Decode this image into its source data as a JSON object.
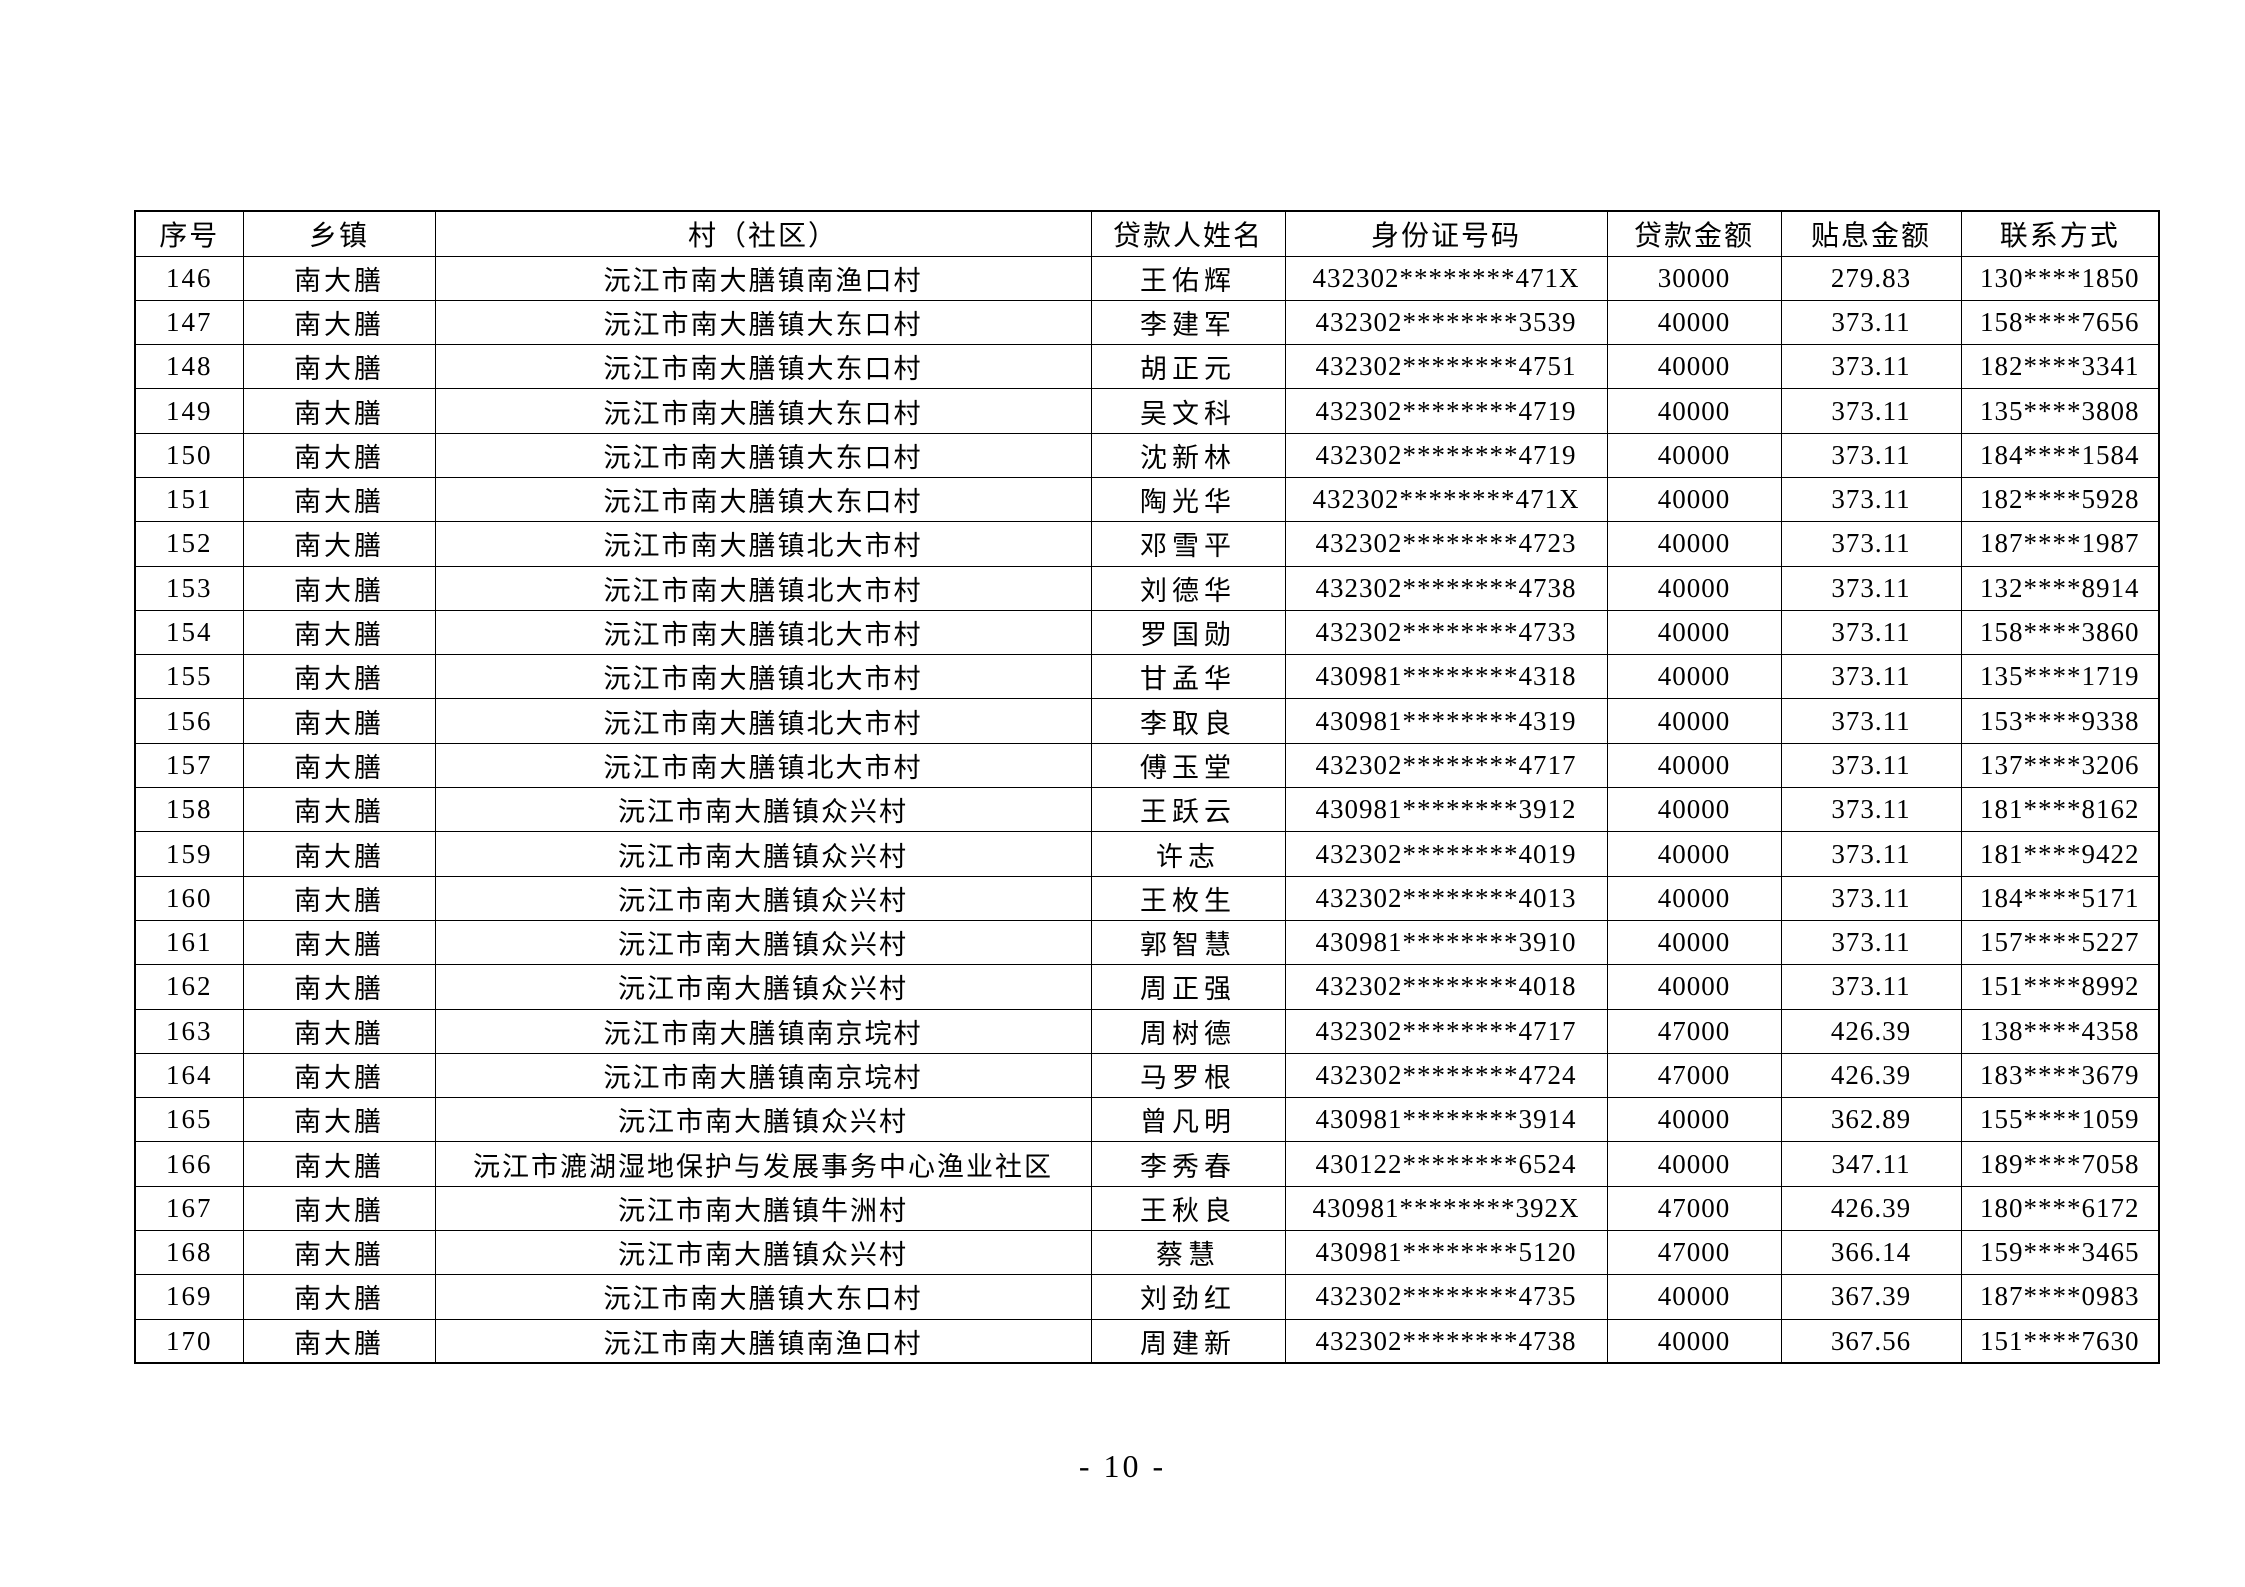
{
  "page": {
    "number_label": "- 10 -"
  },
  "table": {
    "headers": [
      "序号",
      "乡镇",
      "村（社区）",
      "贷款人姓名",
      "身份证号码",
      "贷款金额",
      "贴息金额",
      "联系方式"
    ],
    "rows": [
      [
        "146",
        "南大膳",
        "沅江市南大膳镇南渔口村",
        "王佑辉",
        "432302********471X",
        "30000",
        "279.83",
        "130****1850"
      ],
      [
        "147",
        "南大膳",
        "沅江市南大膳镇大东口村",
        "李建军",
        "432302********3539",
        "40000",
        "373.11",
        "158****7656"
      ],
      [
        "148",
        "南大膳",
        "沅江市南大膳镇大东口村",
        "胡正元",
        "432302********4751",
        "40000",
        "373.11",
        "182****3341"
      ],
      [
        "149",
        "南大膳",
        "沅江市南大膳镇大东口村",
        "吴文科",
        "432302********4719",
        "40000",
        "373.11",
        "135****3808"
      ],
      [
        "150",
        "南大膳",
        "沅江市南大膳镇大东口村",
        "沈新林",
        "432302********4719",
        "40000",
        "373.11",
        "184****1584"
      ],
      [
        "151",
        "南大膳",
        "沅江市南大膳镇大东口村",
        "陶光华",
        "432302********471X",
        "40000",
        "373.11",
        "182****5928"
      ],
      [
        "152",
        "南大膳",
        "沅江市南大膳镇北大市村",
        "邓雪平",
        "432302********4723",
        "40000",
        "373.11",
        "187****1987"
      ],
      [
        "153",
        "南大膳",
        "沅江市南大膳镇北大市村",
        "刘德华",
        "432302********4738",
        "40000",
        "373.11",
        "132****8914"
      ],
      [
        "154",
        "南大膳",
        "沅江市南大膳镇北大市村",
        "罗国勋",
        "432302********4733",
        "40000",
        "373.11",
        "158****3860"
      ],
      [
        "155",
        "南大膳",
        "沅江市南大膳镇北大市村",
        "甘孟华",
        "430981********4318",
        "40000",
        "373.11",
        "135****1719"
      ],
      [
        "156",
        "南大膳",
        "沅江市南大膳镇北大市村",
        "李取良",
        "430981********4319",
        "40000",
        "373.11",
        "153****9338"
      ],
      [
        "157",
        "南大膳",
        "沅江市南大膳镇北大市村",
        "傅玉堂",
        "432302********4717",
        "40000",
        "373.11",
        "137****3206"
      ],
      [
        "158",
        "南大膳",
        "沅江市南大膳镇众兴村",
        "王跃云",
        "430981********3912",
        "40000",
        "373.11",
        "181****8162"
      ],
      [
        "159",
        "南大膳",
        "沅江市南大膳镇众兴村",
        "许志",
        "432302********4019",
        "40000",
        "373.11",
        "181****9422"
      ],
      [
        "160",
        "南大膳",
        "沅江市南大膳镇众兴村",
        "王枚生",
        "432302********4013",
        "40000",
        "373.11",
        "184****5171"
      ],
      [
        "161",
        "南大膳",
        "沅江市南大膳镇众兴村",
        "郭智慧",
        "430981********3910",
        "40000",
        "373.11",
        "157****5227"
      ],
      [
        "162",
        "南大膳",
        "沅江市南大膳镇众兴村",
        "周正强",
        "432302********4018",
        "40000",
        "373.11",
        "151****8992"
      ],
      [
        "163",
        "南大膳",
        "沅江市南大膳镇南京垸村",
        "周树德",
        "432302********4717",
        "47000",
        "426.39",
        "138****4358"
      ],
      [
        "164",
        "南大膳",
        "沅江市南大膳镇南京垸村",
        "马罗根",
        "432302********4724",
        "47000",
        "426.39",
        "183****3679"
      ],
      [
        "165",
        "南大膳",
        "沅江市南大膳镇众兴村",
        "曾凡明",
        "430981********3914",
        "40000",
        "362.89",
        "155****1059"
      ],
      [
        "166",
        "南大膳",
        "沅江市漉湖湿地保护与发展事务中心渔业社区",
        "李秀春",
        "430122********6524",
        "40000",
        "347.11",
        "189****7058"
      ],
      [
        "167",
        "南大膳",
        "沅江市南大膳镇牛洲村",
        "王秋良",
        "430981********392X",
        "47000",
        "426.39",
        "180****6172"
      ],
      [
        "168",
        "南大膳",
        "沅江市南大膳镇众兴村",
        "蔡慧",
        "430981********5120",
        "47000",
        "366.14",
        "159****3465"
      ],
      [
        "169",
        "南大膳",
        "沅江市南大膳镇大东口村",
        "刘劲红",
        "432302********4735",
        "40000",
        "367.39",
        "187****0983"
      ],
      [
        "170",
        "南大膳",
        "沅江市南大膳镇南渔口村",
        "周建新",
        "432302********4738",
        "40000",
        "367.56",
        "151****7630"
      ]
    ],
    "cell_names": [
      "row-index-cell",
      "township-cell",
      "village-cell",
      "borrower-name-cell",
      "id-number-cell",
      "loan-amount-cell",
      "subsidy-amount-cell",
      "contact-phone-cell"
    ]
  }
}
